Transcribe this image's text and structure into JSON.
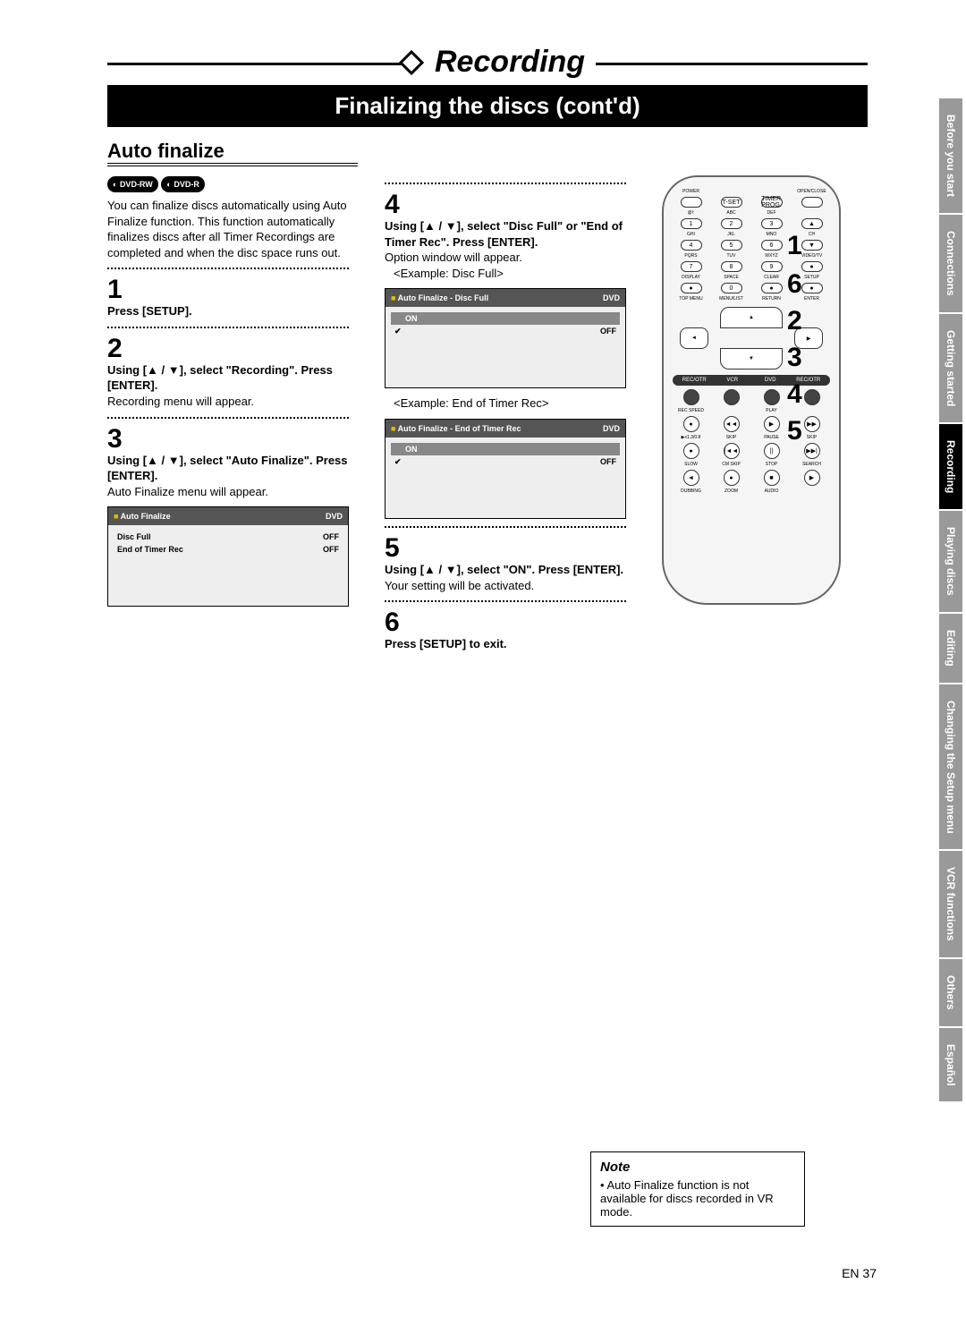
{
  "ribbon": {
    "title": "Recording"
  },
  "subtitle": "Finalizing the discs (cont'd)",
  "section_heading": "Auto finalize",
  "disc_badges": [
    "DVD-RW",
    "DVD-R"
  ],
  "intro": "You can finalize discs automatically using Auto Finalize function. This function automatically finalizes discs after all Timer Recordings are completed and when the disc space runs out.",
  "steps": {
    "s1": {
      "num": "1",
      "bold": "Press [SETUP]."
    },
    "s2": {
      "num": "2",
      "bold": "Using [▲ / ▼], select \"Recording\". Press [ENTER].",
      "text": "Recording menu will appear."
    },
    "s3": {
      "num": "3",
      "bold": "Using [▲ / ▼], select \"Auto Finalize\". Press [ENTER].",
      "text": "Auto Finalize menu will appear."
    },
    "s4": {
      "num": "4",
      "bold": "Using [▲ / ▼], select \"Disc Full\" or \"End of Timer Rec\". Press [ENTER].",
      "text": "Option window will appear.",
      "example1": "<Example: Disc Full>",
      "example2": "<Example: End of Timer Rec>"
    },
    "s5": {
      "num": "5",
      "bold": "Using [▲ / ▼], select \"ON\". Press [ENTER].",
      "text": "Your setting will be activated."
    },
    "s6": {
      "num": "6",
      "bold": "Press [SETUP] to exit."
    }
  },
  "menu3": {
    "title": "Auto Finalize",
    "tag": "DVD",
    "rows": [
      {
        "label": "Disc Full",
        "value": "OFF"
      },
      {
        "label": "End of Timer Rec",
        "value": "OFF"
      }
    ]
  },
  "menu4a": {
    "title": "Auto Finalize - Disc Full",
    "tag": "DVD",
    "rows": [
      {
        "label": "ON",
        "value": "",
        "on": true
      },
      {
        "label": "OFF",
        "value": "",
        "selected": true
      }
    ]
  },
  "menu4b": {
    "title": "Auto Finalize - End of Timer Rec",
    "tag": "DVD",
    "rows": [
      {
        "label": "ON",
        "value": "",
        "on": true
      },
      {
        "label": "OFF",
        "value": "",
        "selected": true
      }
    ]
  },
  "callouts": [
    "1",
    "6",
    "2",
    "3",
    "4",
    "5"
  ],
  "note": {
    "title": "Note",
    "text": "• Auto Finalize function is not available for discs recorded in VR mode."
  },
  "tabs": [
    "Before you start",
    "Connections",
    "Getting started",
    "Recording",
    "Playing discs",
    "Editing",
    "Changing the Setup menu",
    "VCR functions",
    "Others",
    "Español"
  ],
  "active_tab": "Recording",
  "page_num": "EN  37",
  "remote": {
    "row_labels": [
      [
        "POWER",
        "",
        "",
        "OPEN/CLOSE"
      ],
      [
        "",
        "T-SET",
        "TIMER PROG.",
        ""
      ],
      [
        "@!:",
        "ABC",
        "DEF",
        ""
      ],
      [
        "1",
        "2",
        "3",
        "▲"
      ],
      [
        "GHI",
        "JKL",
        "MNO",
        "CH"
      ],
      [
        "4",
        "5",
        "6",
        "▼"
      ],
      [
        "PQRS",
        "TUV",
        "WXYZ",
        "VIDEO/TV"
      ],
      [
        "7",
        "8",
        "9",
        "●"
      ],
      [
        "DISPLAY",
        "SPACE",
        "CLEAR",
        "SETUP"
      ],
      [
        "●",
        "0",
        "●",
        "●"
      ],
      [
        "TOP MENU",
        "MENU/LIST",
        "RETURN",
        "ENTER"
      ]
    ],
    "sources": [
      "REC/OTR",
      "VCR",
      "DVD",
      "REC/OTR"
    ],
    "bottom_labels": [
      [
        "REC SPEED",
        "",
        "PLAY",
        ""
      ],
      [
        "●",
        "◄◄",
        "▶",
        "▶▶"
      ],
      [
        "▶x1.3/0.8",
        "SKIP",
        "PAUSE",
        "SKIP"
      ],
      [
        "●",
        "|◄◄",
        "||",
        "▶▶|"
      ],
      [
        "SLOW",
        "CM SKIP",
        "STOP",
        "SEARCH"
      ],
      [
        "◄",
        "●",
        "■",
        "▶"
      ],
      [
        "DUBBING",
        "ZOOM",
        "AUDIO",
        ""
      ]
    ]
  }
}
